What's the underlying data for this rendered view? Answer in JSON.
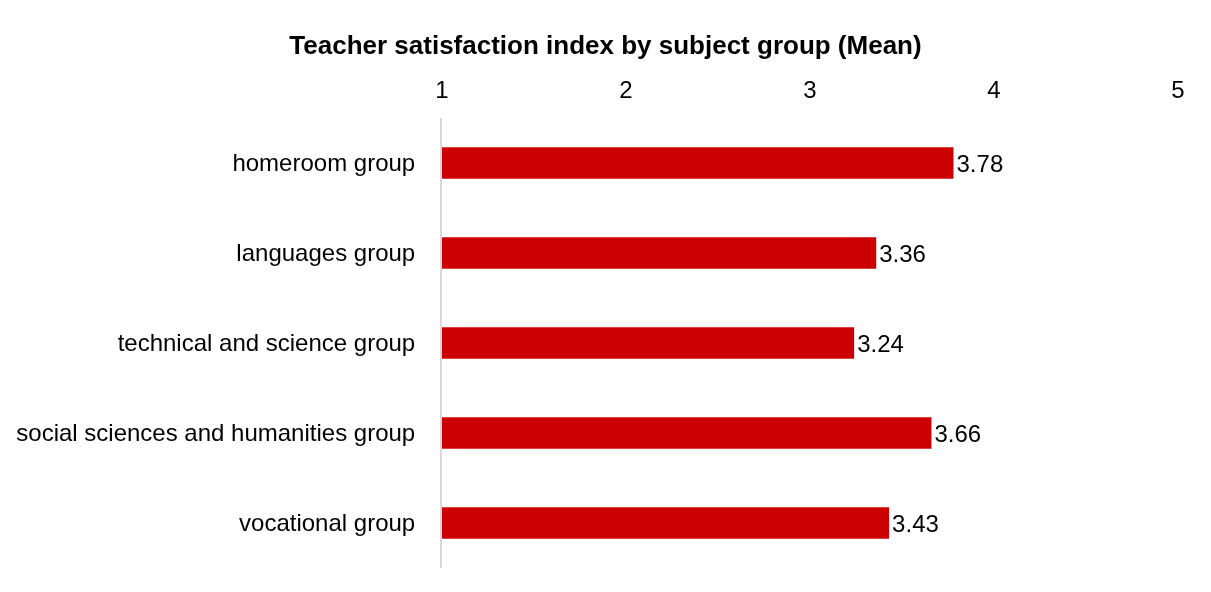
{
  "chart_data": {
    "type": "bar",
    "orientation": "horizontal",
    "title": "Teacher satisfaction index by subject group (Mean)",
    "categories": [
      "homeroom group",
      "languages group",
      "technical and science group",
      "social sciences and humanities group",
      "vocational group"
    ],
    "values": [
      3.78,
      3.36,
      3.24,
      3.66,
      3.43
    ],
    "color": "#cc0000",
    "xlim": [
      1,
      5
    ],
    "xticks": [
      1,
      2,
      3,
      4,
      5
    ],
    "data_labels": true
  }
}
